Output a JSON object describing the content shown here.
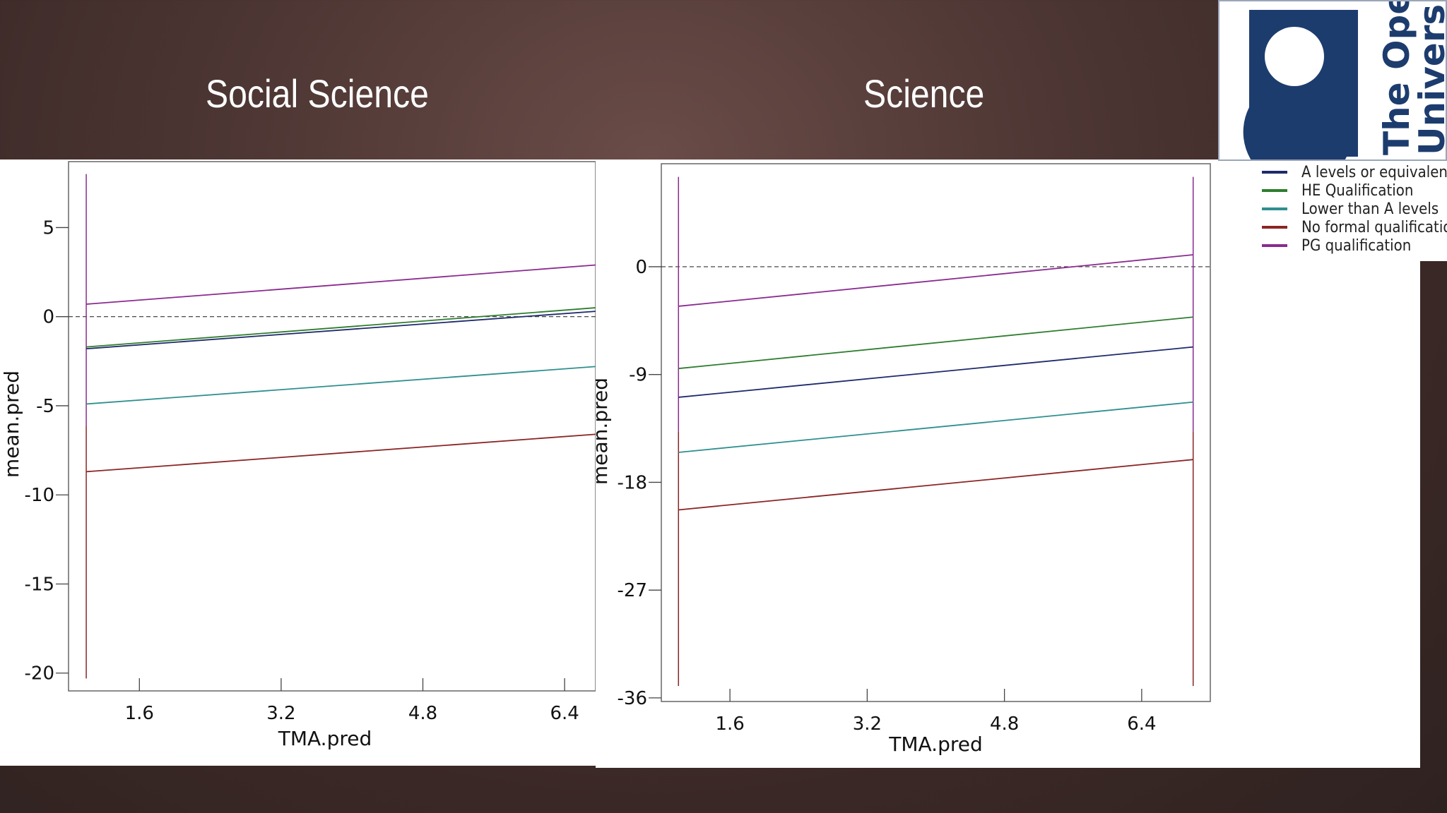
{
  "slide": {
    "title_left": "Social Science",
    "title_right": "Science"
  },
  "colors": {
    "A levels or equivalent": "#1e2a6b",
    "HE Qualification": "#2e7d2e",
    "Lower than A levels": "#2f8f8f",
    "No formal qualification": "#8b2525",
    "PG qualification": "#8a2b8f"
  },
  "logo": {
    "text_line1": "The Open",
    "text_line2": "University",
    "brand_color": "#1d3c6e"
  },
  "legend": {
    "items": [
      {
        "label": "A levels or equivalent",
        "color": "#1e2a6b"
      },
      {
        "label": "HE Qualification",
        "color": "#2e7d2e"
      },
      {
        "label": "Lower than A levels",
        "color": "#2f8f8f"
      },
      {
        "label": "No formal qualificatio",
        "color": "#8b2525"
      },
      {
        "label": "PG qualification",
        "color": "#8a2b8f"
      }
    ]
  },
  "chart_data": [
    {
      "type": "line",
      "title": "Social Science",
      "xlabel": "TMA.pred",
      "ylabel": "mean.pred",
      "xticks": [
        1.6,
        3.2,
        4.8,
        6.4
      ],
      "yticks": [
        5,
        0,
        -5,
        -10,
        -15,
        -20
      ],
      "xlim": [
        0.8,
        6.75
      ],
      "ylim": [
        -21,
        8.7
      ],
      "reference_line_y": 0,
      "series": [
        {
          "name": "A levels or equivalent",
          "x": [
            1.0,
            6.75
          ],
          "y": [
            -1.8,
            0.3
          ]
        },
        {
          "name": "HE Qualification",
          "x": [
            1.0,
            6.75
          ],
          "y": [
            -1.7,
            0.5
          ]
        },
        {
          "name": "Lower than A levels",
          "x": [
            1.0,
            6.75
          ],
          "y": [
            -4.9,
            -2.8
          ]
        },
        {
          "name": "No formal qualification",
          "x": [
            1.0,
            6.75
          ],
          "y": [
            -8.7,
            -6.6
          ]
        },
        {
          "name": "PG qualification",
          "x": [
            1.0,
            6.75
          ],
          "y": [
            0.7,
            2.9
          ]
        }
      ],
      "error_bars": {
        "x": 1.0,
        "y_top": 8.0,
        "y_bottom": -20.3
      }
    },
    {
      "type": "line",
      "title": "Science",
      "xlabel": "TMA.pred",
      "ylabel": "mean.pred",
      "xticks": [
        1.6,
        3.2,
        4.8,
        6.4
      ],
      "yticks": [
        0,
        -9,
        -18,
        -27,
        -36
      ],
      "xlim": [
        0.8,
        7.2
      ],
      "ylim": [
        -36.3,
        8.6
      ],
      "reference_line_y": 0,
      "series": [
        {
          "name": "A levels or equivalent",
          "x": [
            1.0,
            7.0
          ],
          "y": [
            -10.9,
            -6.7
          ]
        },
        {
          "name": "HE Qualification",
          "x": [
            1.0,
            7.0
          ],
          "y": [
            -8.5,
            -4.2
          ]
        },
        {
          "name": "Lower than A levels",
          "x": [
            1.0,
            7.0
          ],
          "y": [
            -15.5,
            -11.3
          ]
        },
        {
          "name": "No formal qualification",
          "x": [
            1.0,
            7.0
          ],
          "y": [
            -20.3,
            -16.1
          ]
        },
        {
          "name": "PG qualification",
          "x": [
            1.0,
            7.0
          ],
          "y": [
            -3.3,
            1.0
          ]
        }
      ],
      "error_bars": {
        "x_left": 1.0,
        "x_right": 7.0,
        "y_top": 7.5,
        "y_bottom": -35.0
      }
    }
  ]
}
